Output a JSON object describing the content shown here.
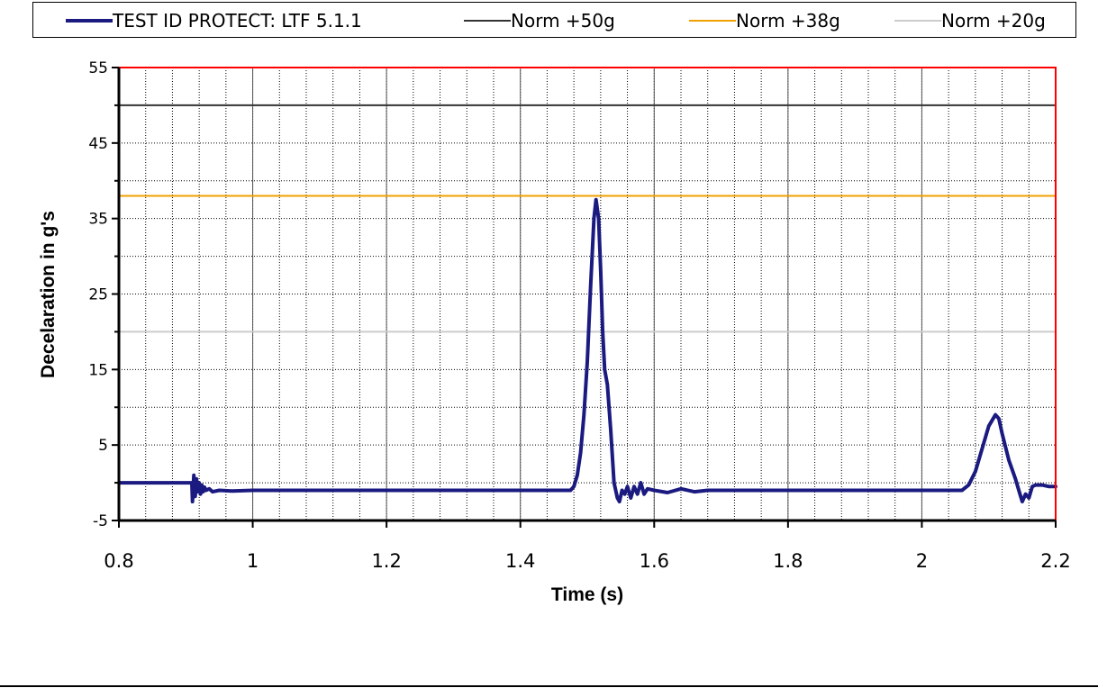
{
  "legend": {
    "items": [
      {
        "label": "TEST ID PROTECT: LTF 5.1.1",
        "color": "#1a1a80"
      },
      {
        "label": "Norm +50g",
        "color": "#333333"
      },
      {
        "label": "Norm +38g",
        "color": "#f0a000"
      },
      {
        "label": "Norm +20g",
        "color": "#cccccc"
      }
    ]
  },
  "chart_data": {
    "type": "line",
    "title": "",
    "xlabel": "Time (s)",
    "ylabel": "Decelaration in g's",
    "xlim": [
      0.8,
      2.2
    ],
    "ylim": [
      -5,
      55
    ],
    "x_ticks": [
      "0.8",
      "1",
      "1.2",
      "1.4",
      "1.6",
      "1.8",
      "2",
      "2.2"
    ],
    "y_ticks": [
      "-5",
      "5",
      "15",
      "25",
      "35",
      "45",
      "55"
    ],
    "grid": true,
    "legend_position": "top",
    "plot_border_color": "#ff0000",
    "series": [
      {
        "name": "TEST ID PROTECT: LTF 5.1.1",
        "color": "#1a1a80",
        "x": [
          0.8,
          0.909,
          0.91,
          0.912,
          0.914,
          0.916,
          0.918,
          0.92,
          0.922,
          0.924,
          0.926,
          0.928,
          0.93,
          0.935,
          0.94,
          0.95,
          0.97,
          1.0,
          1.2,
          1.4,
          1.475,
          1.48,
          1.485,
          1.49,
          1.495,
          1.5,
          1.505,
          1.51,
          1.513,
          1.517,
          1.52,
          1.523,
          1.526,
          1.53,
          1.535,
          1.54,
          1.545,
          1.548,
          1.552,
          1.556,
          1.56,
          1.565,
          1.57,
          1.575,
          1.58,
          1.585,
          1.59,
          1.6,
          1.62,
          1.64,
          1.66,
          1.68,
          1.7,
          1.75,
          1.8,
          1.9,
          2.0,
          2.06,
          2.07,
          2.08,
          2.09,
          2.1,
          2.11,
          2.115,
          2.12,
          2.13,
          2.14,
          2.145,
          2.15,
          2.155,
          2.16,
          2.165,
          2.17,
          2.18,
          2.19,
          2.2
        ],
        "y": [
          0,
          0,
          -2.5,
          1,
          -1.8,
          0.5,
          -1.2,
          0,
          -1.5,
          -0.3,
          -1.2,
          -0.6,
          -1,
          -0.8,
          -1.2,
          -1,
          -1.1,
          -1,
          -1,
          -1,
          -1,
          -0.5,
          1,
          4,
          9,
          16,
          26,
          35,
          37.5,
          35,
          28,
          20,
          15,
          13,
          7,
          0,
          -2,
          -2.5,
          -1,
          -1.5,
          -0.5,
          -2,
          -0.5,
          -1.5,
          0,
          -1.5,
          -0.8,
          -1,
          -1.3,
          -0.8,
          -1.2,
          -1,
          -1,
          -1,
          -1,
          -1,
          -1,
          -1,
          -0.3,
          1.5,
          4.5,
          7.5,
          9,
          8.5,
          6.5,
          3,
          0.5,
          -1,
          -2.5,
          -1.5,
          -2,
          -0.5,
          -0.3,
          -0.3,
          -0.5,
          -0.5
        ]
      },
      {
        "name": "Norm +50g",
        "color": "#333333",
        "x": [
          0.8,
          2.2
        ],
        "y": [
          50,
          50
        ]
      },
      {
        "name": "Norm +38g",
        "color": "#f0a000",
        "x": [
          0.8,
          2.2
        ],
        "y": [
          38,
          38
        ]
      },
      {
        "name": "Norm +20g",
        "color": "#cccccc",
        "x": [
          0.8,
          2.2
        ],
        "y": [
          20,
          20
        ]
      }
    ]
  }
}
